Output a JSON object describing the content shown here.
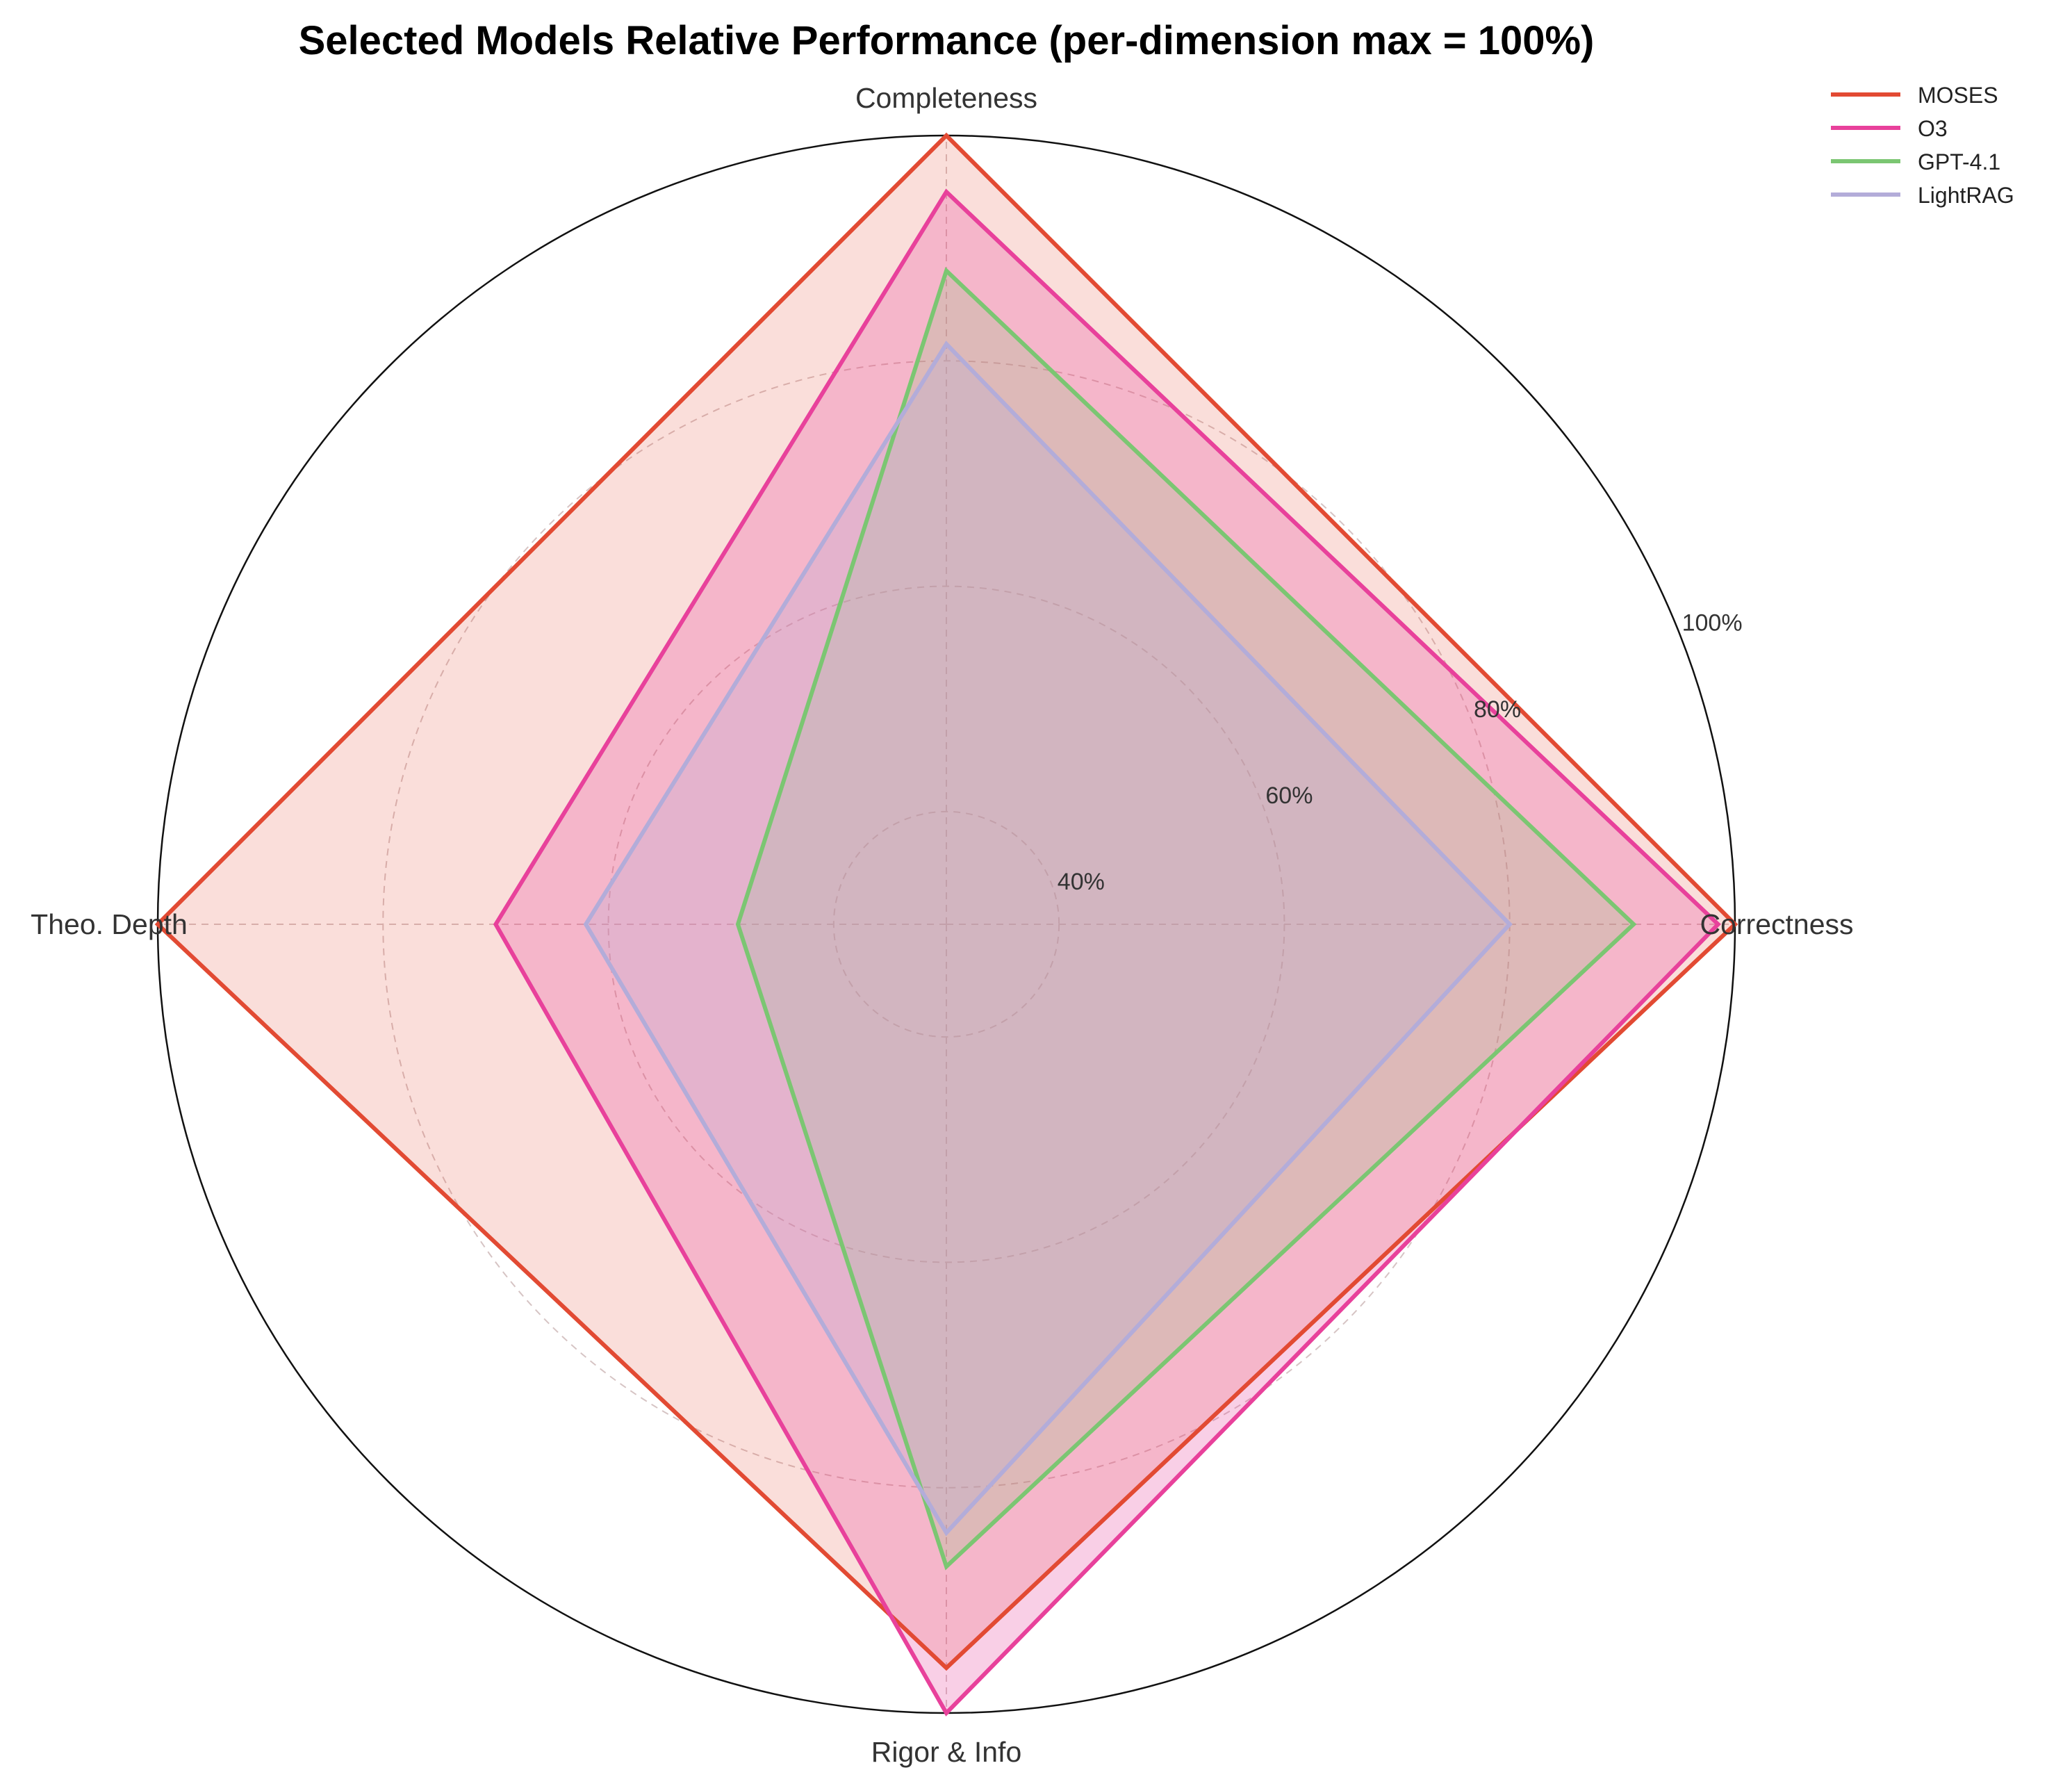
{
  "chart_data": {
    "type": "radar",
    "title": "Selected Models Relative Performance (per-dimension max = 100%)",
    "axes": [
      "Correctness",
      "Completeness",
      "Theo. Depth",
      "Rigor & Info"
    ],
    "radial_ticks": [
      40,
      60,
      80,
      100
    ],
    "radial_tick_labels": [
      "40%",
      "60%",
      "80%",
      "100%"
    ],
    "rlim": [
      30,
      100
    ],
    "grid": true,
    "legend_position": "top-right",
    "series": [
      {
        "name": "MOSES",
        "color": "#e24a33",
        "values": [
          100,
          100,
          100,
          96
        ]
      },
      {
        "name": "O3",
        "color": "#e8419b",
        "values": [
          98.5,
          95,
          70,
          100
        ]
      },
      {
        "name": "GPT-4.1",
        "color": "#7bc672",
        "values": [
          91,
          88,
          48.5,
          87
        ]
      },
      {
        "name": "LightRAG",
        "color": "#b3acd9",
        "values": [
          80,
          81.5,
          62,
          84
        ]
      }
    ]
  }
}
